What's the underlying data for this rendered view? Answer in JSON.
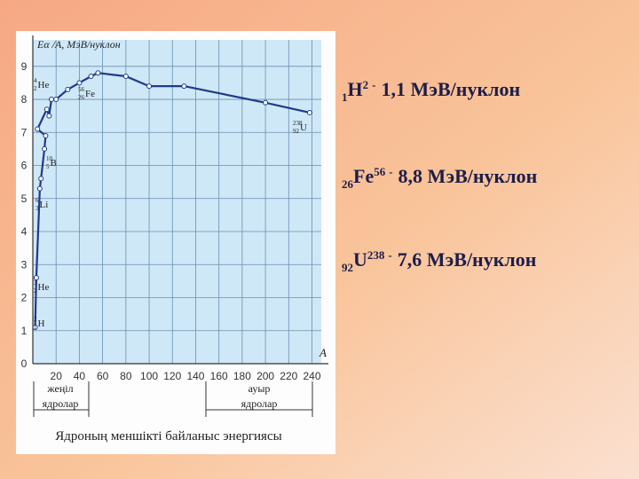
{
  "chart_data": {
    "type": "line",
    "y_label": "Eα /A, МэВ/нуклон",
    "x_label": "A",
    "caption": "Ядроның меншікті байланыс энергиясы",
    "light_group": [
      "жеңіл",
      "ядролар"
    ],
    "heavy_group": [
      "ауыр",
      "ядролар"
    ],
    "xlim": [
      0,
      248
    ],
    "ylim": [
      0,
      9.8
    ],
    "xticks": [
      20,
      40,
      60,
      80,
      100,
      120,
      140,
      160,
      180,
      200,
      220,
      240
    ],
    "yticks": [
      0,
      1,
      2,
      3,
      4,
      5,
      6,
      7,
      8,
      9
    ],
    "grid": true,
    "series": [
      {
        "color": "#1f3a8a",
        "x": [
          2,
          3,
          6,
          7,
          10,
          11,
          4,
          12,
          14,
          16,
          20,
          30,
          40,
          50,
          56,
          80,
          100,
          130,
          200,
          238
        ],
        "values": [
          1.1,
          2.6,
          5.3,
          5.6,
          6.5,
          6.9,
          7.1,
          7.7,
          7.5,
          8.0,
          8.0,
          8.3,
          8.5,
          8.7,
          8.8,
          8.7,
          8.4,
          8.4,
          7.9,
          7.6
        ]
      }
    ],
    "nuclide_labels": [
      {
        "mass": "4",
        "charge": "2",
        "symbol": "He"
      },
      {
        "mass": "56",
        "charge": "26",
        "symbol": "Fe"
      },
      {
        "mass": "10",
        "charge": "5",
        "symbol": "B"
      },
      {
        "mass": "6",
        "charge": "3",
        "symbol": "Li"
      },
      {
        "mass": "3",
        "charge": "2",
        "symbol": "He"
      },
      {
        "mass": "2",
        "charge": "1",
        "symbol": "H"
      },
      {
        "mass": "238",
        "charge": "92",
        "symbol": "U"
      }
    ]
  },
  "slide_text": [
    {
      "charge": "1",
      "symbol": "H",
      "mass": "2",
      "dash": "-",
      "text": "1,1 МэВ/нуклон"
    },
    {
      "charge": "26",
      "symbol": "Fe",
      "mass": "56",
      "dash": "-",
      "text": "8,8 МэВ/нуклон"
    },
    {
      "charge": "92",
      "symbol": "U",
      "mass": "238",
      "dash": "-",
      "text": "7,6 МэВ/нуклон"
    }
  ]
}
